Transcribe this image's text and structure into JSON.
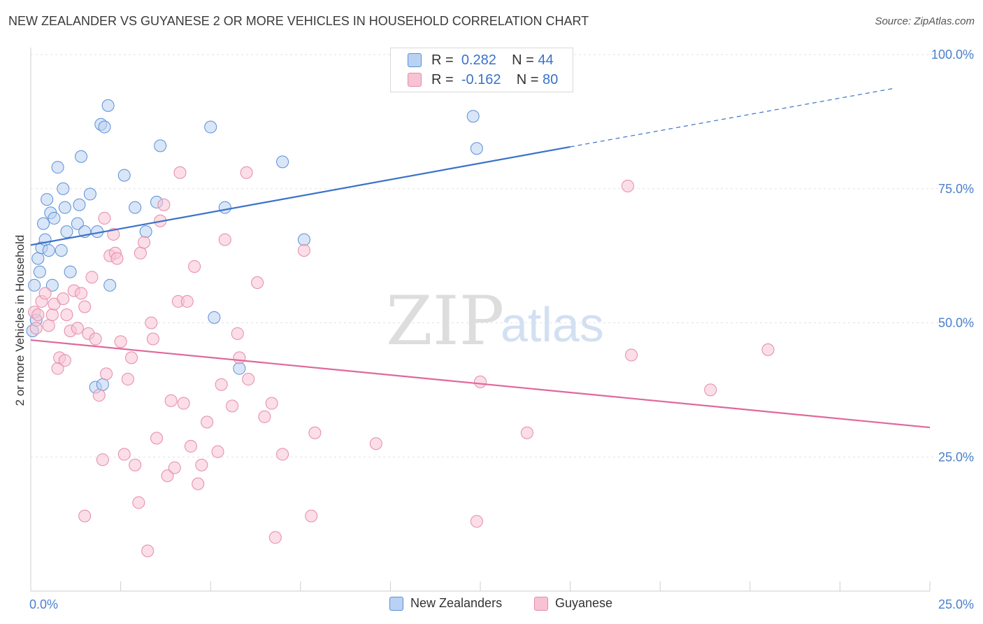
{
  "title": "NEW ZEALANDER VS GUYANESE 2 OR MORE VEHICLES IN HOUSEHOLD CORRELATION CHART",
  "source": "Source: ZipAtlas.com",
  "watermark": {
    "zip": "ZIP",
    "atlas": "atlas"
  },
  "legend": {
    "rows": [
      {
        "r_label": "R =",
        "r_value": "0.282",
        "n_label": "N =",
        "n_value": "44"
      },
      {
        "r_label": "R =",
        "r_value": "-0.162",
        "n_label": "N =",
        "n_value": "80"
      }
    ]
  },
  "bottom_legend": [
    "New Zealanders",
    "Guyanese"
  ],
  "colors": {
    "blue_fill": "#b9d2f3",
    "blue_stroke": "#5b8fd4",
    "blue_line": "#3a72c9",
    "pink_fill": "#f7c3d3",
    "pink_stroke": "#e58aa8",
    "pink_line": "#e0689a",
    "tick_label": "#4a7fcf"
  },
  "chart_data": {
    "type": "scatter",
    "title": "NEW ZEALANDER VS GUYANESE 2 OR MORE VEHICLES IN HOUSEHOLD CORRELATION CHART",
    "xlabel": "",
    "ylabel": "2 or more Vehicles in Household",
    "xlim": [
      0,
      25
    ],
    "ylim": [
      0,
      100
    ],
    "x_tick_labels": [
      "0.0%",
      "25.0%"
    ],
    "y_ticks": [
      {
        "value": 25,
        "label": "25.0%"
      },
      {
        "value": 50,
        "label": "50.0%"
      },
      {
        "value": 75,
        "label": "75.0%"
      },
      {
        "value": 100,
        "label": "100.0%"
      }
    ],
    "grid": "horizontal dashed",
    "legend_position": "top-center",
    "series": [
      {
        "name": "New Zealanders",
        "color": "#5b8fd4",
        "R": 0.282,
        "N": 44,
        "trend": {
          "x": [
            0,
            15
          ],
          "y": [
            64.5,
            82.8
          ],
          "dashed_to": {
            "x": 24,
            "y": 93.7
          }
        },
        "points": [
          [
            0.05,
            48.5
          ],
          [
            0.1,
            57
          ],
          [
            0.15,
            50.5
          ],
          [
            0.2,
            62
          ],
          [
            0.25,
            59.5
          ],
          [
            0.3,
            64
          ],
          [
            0.35,
            68.5
          ],
          [
            0.4,
            65.5
          ],
          [
            0.45,
            73
          ],
          [
            0.5,
            63.5
          ],
          [
            0.55,
            70.5
          ],
          [
            0.6,
            57
          ],
          [
            0.65,
            69.5
          ],
          [
            0.75,
            79
          ],
          [
            0.85,
            63.5
          ],
          [
            0.9,
            75
          ],
          [
            0.95,
            71.5
          ],
          [
            1.0,
            67
          ],
          [
            1.1,
            59.5
          ],
          [
            1.3,
            68.5
          ],
          [
            1.35,
            72
          ],
          [
            1.4,
            81
          ],
          [
            1.5,
            67
          ],
          [
            1.65,
            74
          ],
          [
            1.85,
            67
          ],
          [
            1.95,
            87
          ],
          [
            2.05,
            86.5
          ],
          [
            2.15,
            90.5
          ],
          [
            2.2,
            57
          ],
          [
            2.6,
            77.5
          ],
          [
            2.9,
            71.5
          ],
          [
            3.2,
            67
          ],
          [
            3.5,
            72.5
          ],
          [
            3.6,
            83
          ],
          [
            1.8,
            38
          ],
          [
            2.0,
            38.5
          ],
          [
            5.0,
            86.5
          ],
          [
            5.1,
            51
          ],
          [
            5.4,
            71.5
          ],
          [
            5.8,
            41.5
          ],
          [
            7.0,
            80
          ],
          [
            7.6,
            65.5
          ],
          [
            12.3,
            88.5
          ],
          [
            12.4,
            82.5
          ]
        ]
      },
      {
        "name": "Guyanese",
        "color": "#e58aa8",
        "R": -0.162,
        "N": 80,
        "trend": {
          "x": [
            0,
            25
          ],
          "y": [
            46.8,
            30.5
          ]
        },
        "points": [
          [
            0.1,
            52
          ],
          [
            0.15,
            49
          ],
          [
            0.2,
            51.5
          ],
          [
            0.3,
            54
          ],
          [
            0.4,
            55.5
          ],
          [
            0.5,
            49.5
          ],
          [
            0.6,
            51.5
          ],
          [
            0.65,
            53.5
          ],
          [
            0.75,
            41.5
          ],
          [
            0.8,
            43.5
          ],
          [
            0.9,
            54.5
          ],
          [
            0.95,
            43
          ],
          [
            1.0,
            51.5
          ],
          [
            1.1,
            48.5
          ],
          [
            1.2,
            56
          ],
          [
            1.3,
            49
          ],
          [
            1.4,
            55.5
          ],
          [
            1.5,
            53
          ],
          [
            1.6,
            48
          ],
          [
            1.7,
            58.5
          ],
          [
            1.8,
            47
          ],
          [
            1.9,
            36.5
          ],
          [
            2.0,
            24.5
          ],
          [
            2.05,
            69.5
          ],
          [
            2.1,
            40.5
          ],
          [
            2.2,
            62.5
          ],
          [
            2.3,
            66.5
          ],
          [
            2.35,
            63
          ],
          [
            2.4,
            62
          ],
          [
            2.5,
            46.5
          ],
          [
            2.6,
            25.5
          ],
          [
            2.7,
            39.5
          ],
          [
            2.8,
            43.5
          ],
          [
            2.9,
            23.5
          ],
          [
            3.0,
            16.5
          ],
          [
            3.05,
            63
          ],
          [
            3.15,
            65
          ],
          [
            3.25,
            7.5
          ],
          [
            3.35,
            50
          ],
          [
            3.4,
            47
          ],
          [
            3.5,
            28.5
          ],
          [
            3.6,
            69
          ],
          [
            3.7,
            72
          ],
          [
            3.8,
            21.5
          ],
          [
            3.9,
            35.5
          ],
          [
            4.0,
            23
          ],
          [
            4.1,
            54
          ],
          [
            4.15,
            78
          ],
          [
            4.25,
            35
          ],
          [
            4.35,
            54
          ],
          [
            4.45,
            27
          ],
          [
            4.55,
            60.5
          ],
          [
            4.65,
            20
          ],
          [
            4.75,
            23.5
          ],
          [
            4.9,
            31.5
          ],
          [
            5.2,
            26
          ],
          [
            5.3,
            38.5
          ],
          [
            5.4,
            65.5
          ],
          [
            5.6,
            34.5
          ],
          [
            5.75,
            48
          ],
          [
            5.8,
            43.5
          ],
          [
            6.0,
            78
          ],
          [
            6.05,
            39.5
          ],
          [
            6.3,
            57.5
          ],
          [
            6.5,
            32.5
          ],
          [
            6.7,
            35
          ],
          [
            6.8,
            10
          ],
          [
            7.0,
            25.5
          ],
          [
            7.6,
            63.5
          ],
          [
            7.8,
            14
          ],
          [
            7.9,
            29.5
          ],
          [
            9.6,
            27.5
          ],
          [
            1.5,
            14
          ],
          [
            12.4,
            13
          ],
          [
            12.5,
            39
          ],
          [
            13.8,
            29.5
          ],
          [
            16.6,
            75.5
          ],
          [
            16.7,
            44
          ],
          [
            18.9,
            37.5
          ],
          [
            20.5,
            45
          ]
        ]
      }
    ]
  }
}
